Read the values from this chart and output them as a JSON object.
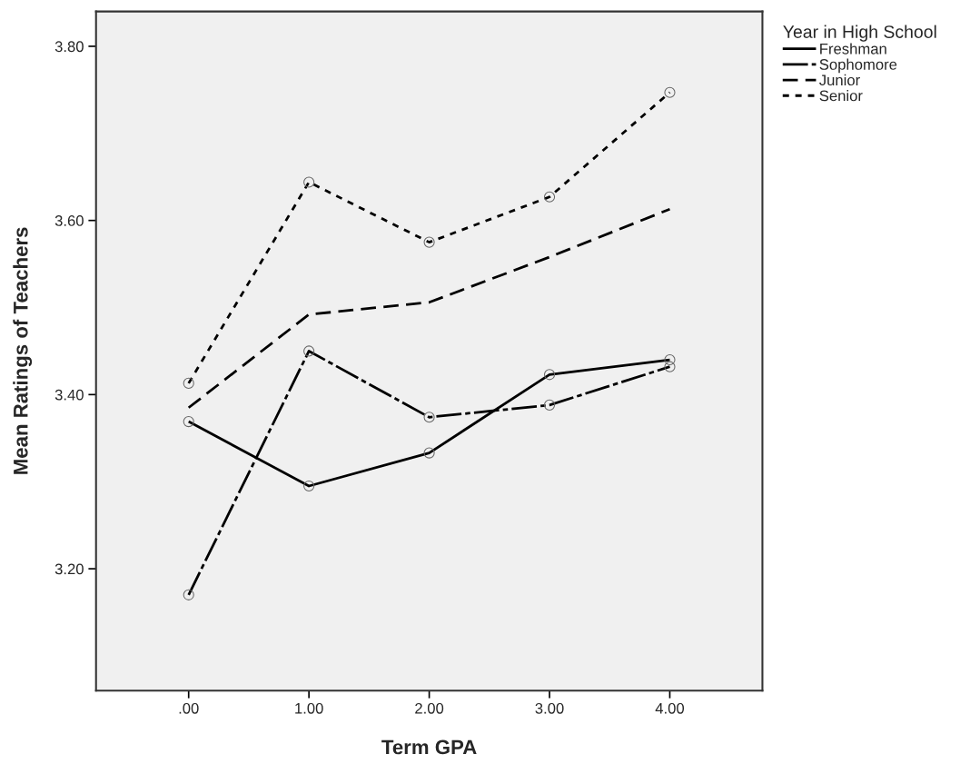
{
  "chart_data": {
    "type": "line",
    "xlabel": "Term GPA",
    "ylabel": "Mean Ratings of Teachers",
    "legend_title": "Year in High School",
    "legend": "top right",
    "x": [
      0,
      1,
      2,
      3,
      4
    ],
    "series": [
      {
        "name": "Freshman",
        "color": "#000000",
        "line_style": "solid",
        "marker": "circle",
        "values": [
          3.369,
          3.295,
          3.333,
          3.423,
          3.44
        ]
      },
      {
        "name": "Sophomore",
        "color": "#000000",
        "line_style": "dashdot",
        "marker": "circle",
        "values": [
          3.17,
          3.45,
          3.374,
          3.388,
          3.432
        ]
      },
      {
        "name": "Junior",
        "color": "#000000",
        "line_style": "dashed",
        "marker": "none",
        "values": [
          3.385,
          3.492,
          3.506,
          3.558,
          3.613
        ]
      },
      {
        "name": "Senior",
        "color": "#000000",
        "line_style": "dotted",
        "marker": "circle",
        "values": [
          3.413,
          3.644,
          3.575,
          3.627,
          3.747
        ]
      }
    ],
    "xlim": [
      -0.77,
      4.77
    ],
    "ylim": [
      3.06,
      3.84
    ],
    "xticks": [
      {
        "value": 0,
        "label": ".00"
      },
      {
        "value": 1,
        "label": "1.00"
      },
      {
        "value": 2,
        "label": "2.00"
      },
      {
        "value": 3,
        "label": "3.00"
      },
      {
        "value": 4,
        "label": "4.00"
      }
    ],
    "yticks": [
      {
        "value": 3.2,
        "label": "3.20"
      },
      {
        "value": 3.4,
        "label": "3.40"
      },
      {
        "value": 3.6,
        "label": "3.60"
      },
      {
        "value": 3.8,
        "label": "3.80"
      }
    ],
    "grid": false
  }
}
